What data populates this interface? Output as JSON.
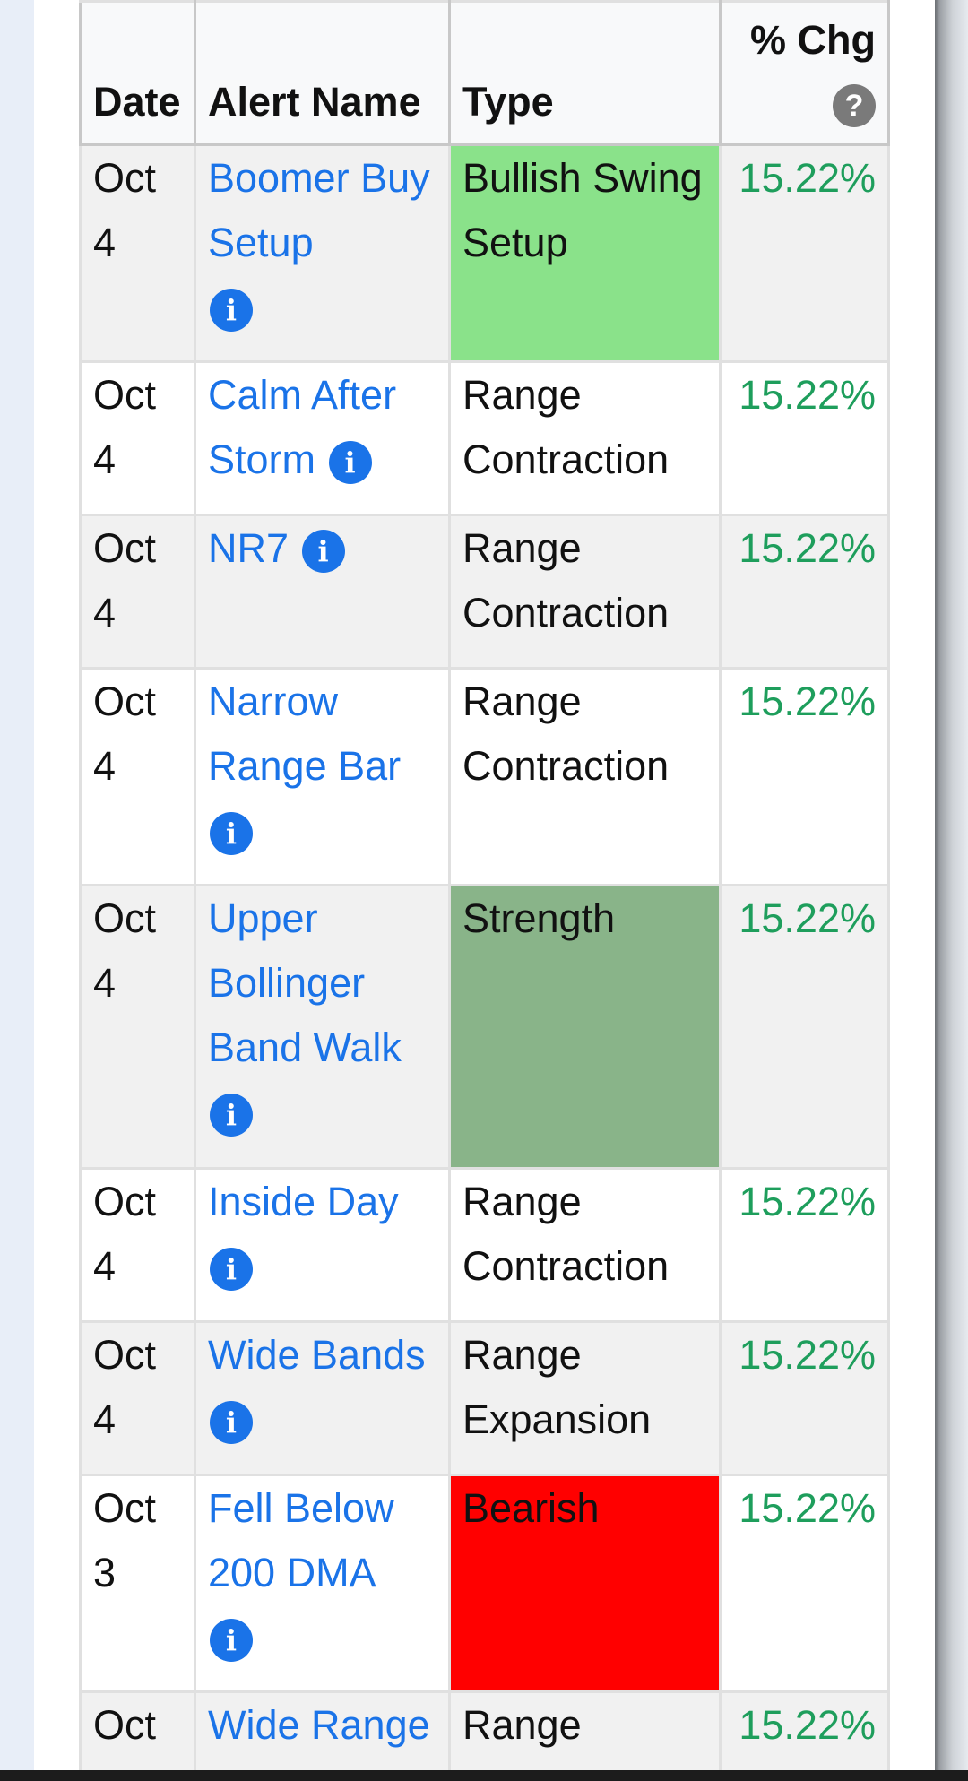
{
  "table": {
    "headers": {
      "date": "Date",
      "alert_name": "Alert Name",
      "type": "Type",
      "chg": "% Chg",
      "help_icon": "?"
    },
    "info_icon": "i",
    "rows": [
      {
        "date": "Oct 4",
        "name": "Boomer Buy Setup",
        "type": "Bullish Swing Setup",
        "chg": "15.22%",
        "type_color": "#8ae28a"
      },
      {
        "date": "Oct 4",
        "name": "Calm After Storm",
        "type": "Range Contraction",
        "chg": "15.22%"
      },
      {
        "date": "Oct 4",
        "name": "NR7",
        "type": "Range Contraction",
        "chg": "15.22%"
      },
      {
        "date": "Oct 4",
        "name": "Narrow Range Bar",
        "type": "Range Contraction",
        "chg": "15.22%"
      },
      {
        "date": "Oct 4",
        "name": "Upper Bollinger Band Walk",
        "type": "Strength",
        "chg": "15.22%",
        "type_color": "#89b489"
      },
      {
        "date": "Oct 4",
        "name": "Inside Day",
        "type": "Range Contraction",
        "chg": "15.22%"
      },
      {
        "date": "Oct 4",
        "name": "Wide Bands",
        "type": "Range Expansion",
        "chg": "15.22%"
      },
      {
        "date": "Oct 3",
        "name": "Fell Below 200 DMA",
        "type": "Bearish",
        "chg": "15.22%",
        "type_color": "#ff0000"
      },
      {
        "date": "Oct",
        "name": "Wide Range",
        "type": "Range",
        "chg": "15.22%"
      }
    ]
  },
  "colors": {
    "link": "#1a73e8",
    "positive_change": "#1e9e5c",
    "header_bg": "#f8f9fa",
    "stripe_bg": "#f1f1f1"
  }
}
